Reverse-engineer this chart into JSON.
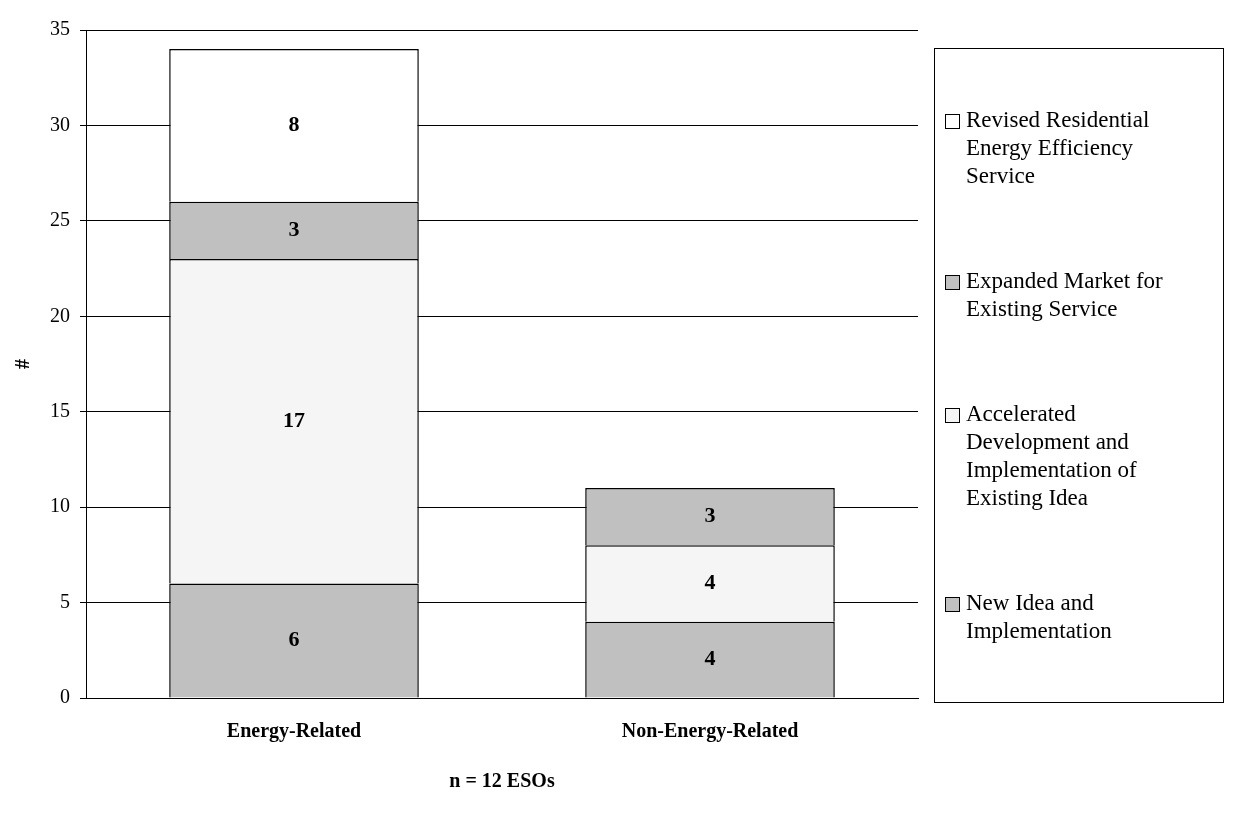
{
  "chart_data": {
    "type": "bar",
    "stacked": true,
    "categories": [
      "Energy-Related",
      "Non-Energy-Related"
    ],
    "xlabel": "n = 12 ESOs",
    "ylabel": "#",
    "ylim": [
      0,
      35
    ],
    "yticks": [
      0,
      5,
      10,
      15,
      20,
      25,
      30,
      35
    ],
    "grid": "y",
    "legend": "right",
    "data_labels": true,
    "series": [
      {
        "name": "New Idea and Implementation",
        "color": "#c0c0c0",
        "values": [
          6,
          4
        ]
      },
      {
        "name": "Accelerated Development and Implementation of Existing Idea",
        "color": "#f5f5f5",
        "values": [
          17,
          4
        ]
      },
      {
        "name": "Expanded Market for Existing Service",
        "color": "#c0c0c0",
        "values": [
          3,
          3
        ]
      },
      {
        "name": "Revised Residential Energy Efficiency Service",
        "color": "#ffffff",
        "values": [
          8,
          null
        ]
      }
    ]
  }
}
